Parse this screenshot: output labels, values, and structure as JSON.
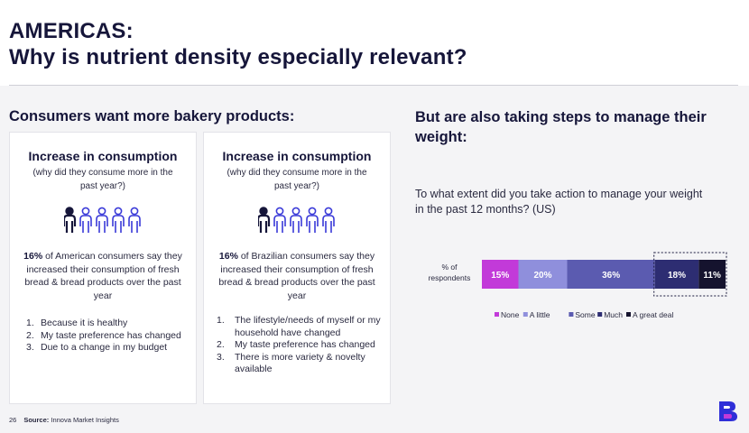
{
  "title": {
    "line1": "AMERICAS:",
    "line2": "Why is nutrient density especially relevant?"
  },
  "left": {
    "heading": "Consumers want more bakery products:",
    "cards": [
      {
        "title": "Increase in consumption",
        "subtitle": "(why did they consume more in the past year?)",
        "highlight": "16%",
        "desc": " of American consumers say they increased their consumption of fresh bread & bread products over the past year",
        "people_icon_color": "#3a3ad8",
        "list": [
          "Because it is healthy",
          "My taste preference has changed",
          "Due to a change in my budget"
        ],
        "list_nums": [
          "1.",
          "2.",
          "3."
        ]
      },
      {
        "title": "Increase in consumption",
        "subtitle": "(why did they consume more in the past year?)",
        "highlight": "16%",
        "desc": " of Brazilian consumers say they increased their consumption of fresh bread & bread products over the past year",
        "people_icon_color": "#3a3ad8",
        "list": [
          "The lifestyle/needs of myself or my household have changed",
          "My taste preference has changed",
          "There is more variety & novelty available"
        ],
        "list_nums": [
          "1.",
          "2.",
          "3."
        ]
      }
    ]
  },
  "right": {
    "heading": "But are also taking steps to manage their weight:",
    "question": "To what extent did you take action to manage your weight in the past 12 months? (US)"
  },
  "chart_data": {
    "type": "bar",
    "orientation": "horizontal-stacked-100",
    "categories": [
      "% of respondents"
    ],
    "series": [
      {
        "name": "None",
        "values": [
          15
        ],
        "label": "15%",
        "color": "#c23ad9"
      },
      {
        "name": "A little",
        "values": [
          20
        ],
        "label": "20%",
        "color": "#8f8fdc"
      },
      {
        "name": "Some",
        "values": [
          36
        ],
        "label": "36%",
        "color": "#5b5bb0"
      },
      {
        "name": "Much",
        "values": [
          18
        ],
        "label": "18%",
        "color": "#2d2d72"
      },
      {
        "name": "A great deal",
        "values": [
          11
        ],
        "label": "11%",
        "color": "#15132e"
      }
    ],
    "xlim": [
      0,
      100
    ],
    "legend_position": "bottom",
    "highlighted_series": [
      "Much",
      "A great deal"
    ],
    "category_label_lines": [
      "% of",
      "respondents"
    ]
  },
  "footer": {
    "page_number": "26",
    "source_label": "Source:",
    "source_text": "Innova Market Insights"
  },
  "logo": {
    "color_top": "#2f2fd8",
    "color_bottom": "#c23ad9"
  }
}
